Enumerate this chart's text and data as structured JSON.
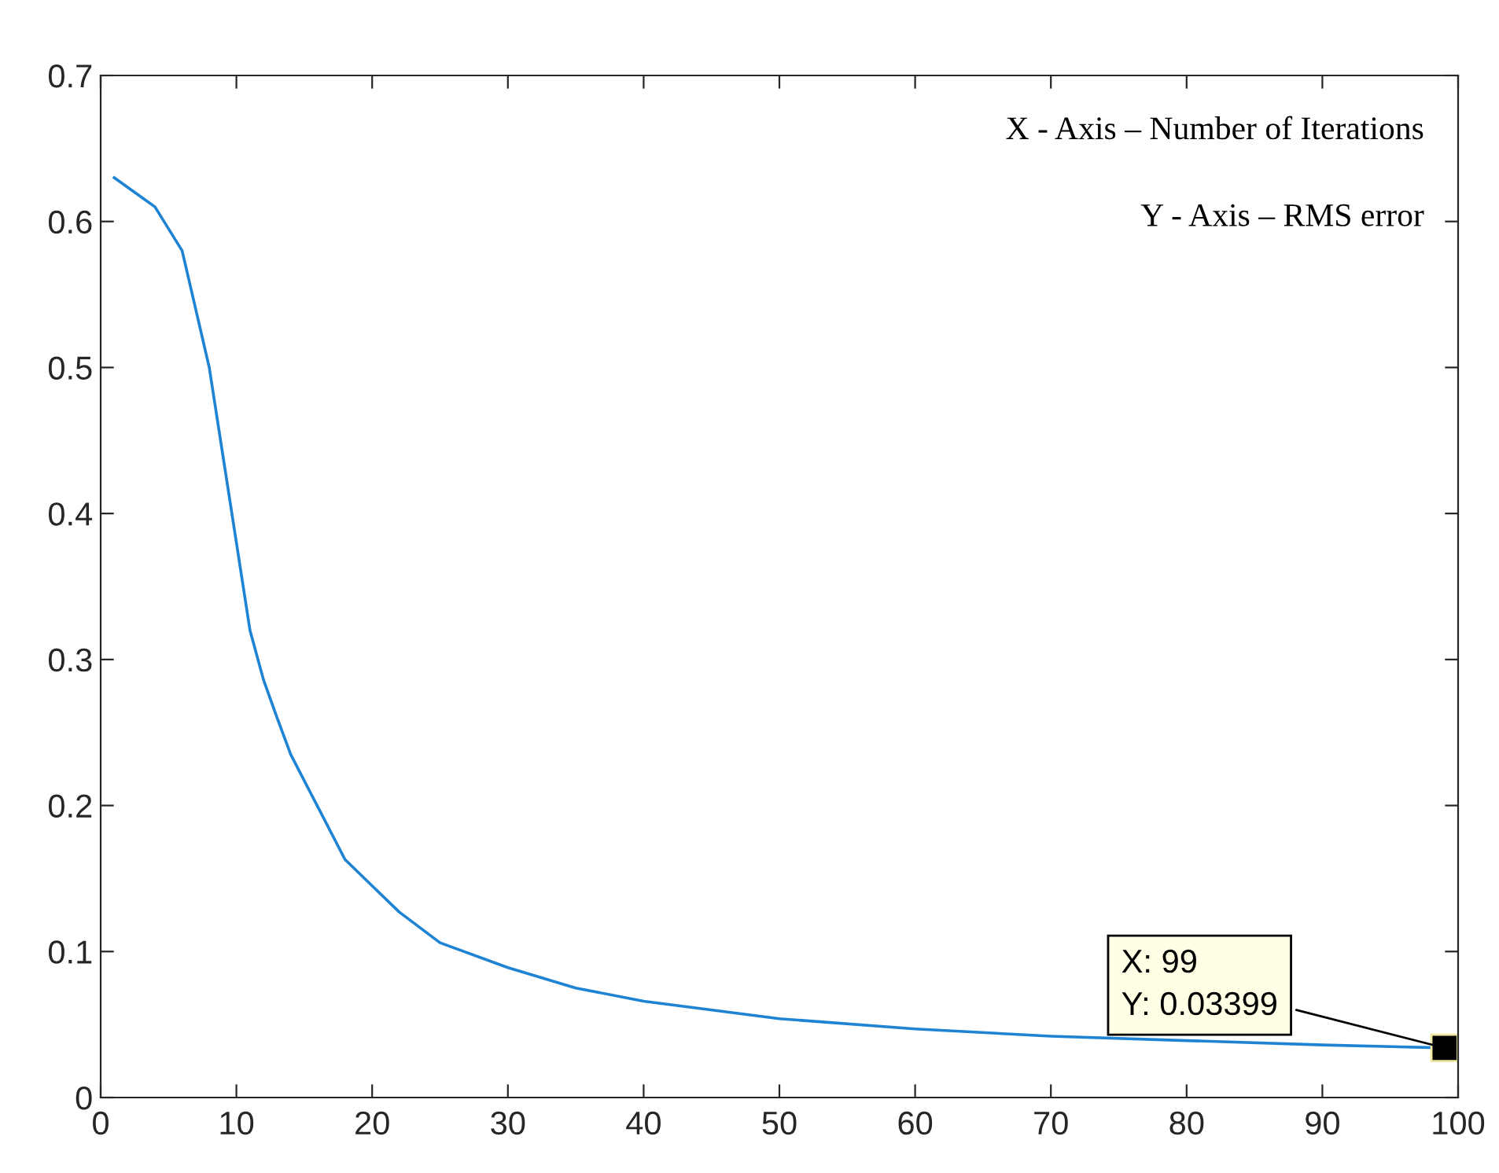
{
  "chart_data": {
    "type": "line",
    "x": [
      1,
      4,
      6,
      8,
      9,
      10,
      11,
      12,
      13,
      14,
      16,
      18,
      20,
      22,
      25,
      30,
      35,
      40,
      50,
      60,
      70,
      80,
      90,
      99
    ],
    "series": [
      {
        "color": "#1f83d3",
        "values": [
          0.63,
          0.61,
          0.58,
          0.5,
          0.44,
          0.38,
          0.32,
          0.286,
          0.26,
          0.235,
          0.199,
          0.163,
          0.145,
          0.127,
          0.106,
          0.089,
          0.075,
          0.066,
          0.054,
          0.047,
          0.042,
          0.039,
          0.036,
          0.034
        ]
      }
    ],
    "xlim": [
      0,
      100
    ],
    "xticks": [
      0,
      10,
      20,
      30,
      40,
      50,
      60,
      70,
      80,
      90,
      100
    ],
    "ylim": [
      0,
      0.7
    ],
    "yticks": [
      0,
      0.1,
      0.2,
      0.3,
      0.4,
      0.5,
      0.6,
      0.7
    ],
    "grid": false,
    "legend": false,
    "annotations": [
      "X - Axis – Number of Iterations",
      "Y - Axis – RMS error",
      {
        "text": "X: 99\nY: 0.03399",
        "x": 99,
        "y": 0.034
      }
    ]
  }
}
